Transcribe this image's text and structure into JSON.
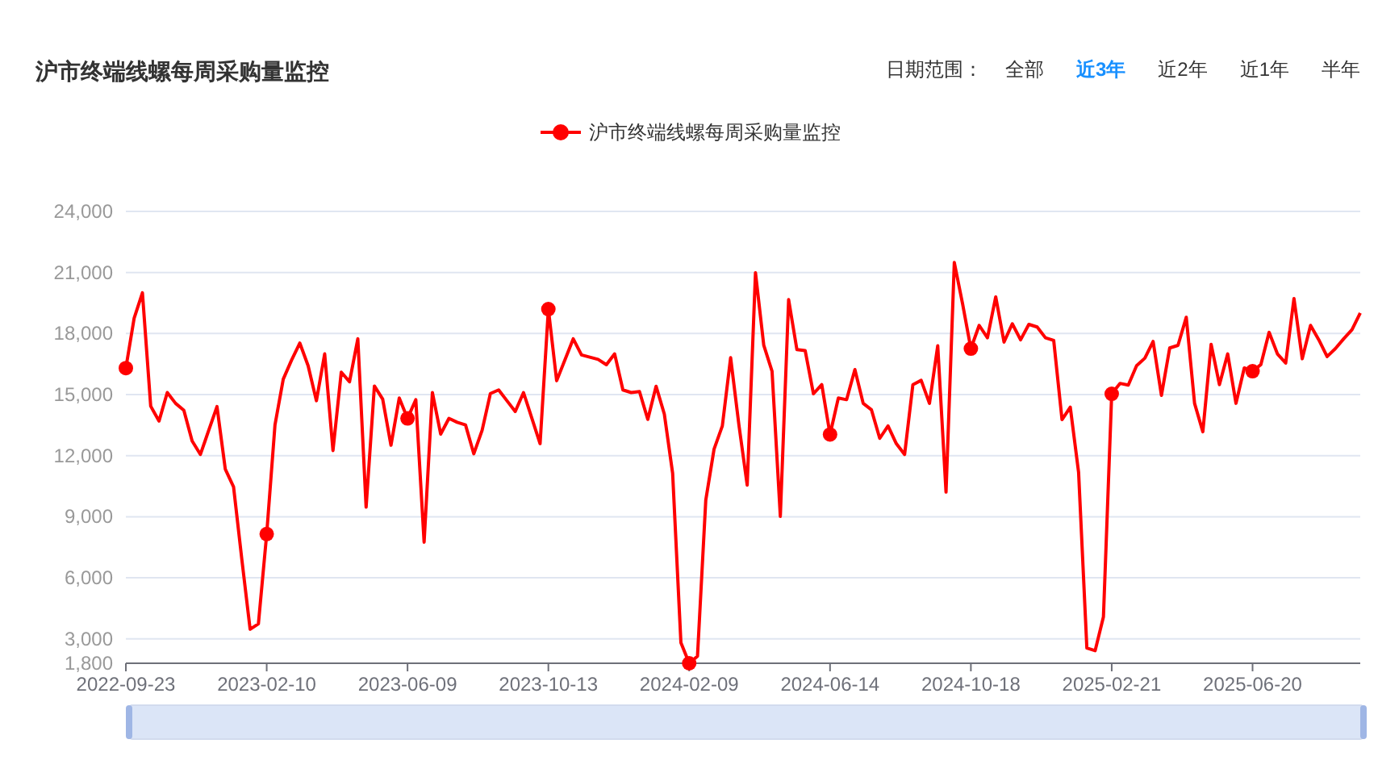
{
  "chart_data": {
    "type": "line",
    "title": "沪市终端线螺每周采购量监控",
    "annotations": [
      "日期范围：",
      "全部",
      "近3年",
      "近2年",
      "近1年",
      "半年"
    ],
    "categories": [
      "2022-09-23",
      null,
      null,
      null,
      null,
      null,
      null,
      null,
      null,
      null,
      null,
      null,
      null,
      null,
      null,
      null,
      null,
      "2023-02-10",
      null,
      null,
      null,
      null,
      null,
      null,
      null,
      null,
      null,
      null,
      null,
      null,
      null,
      null,
      null,
      null,
      "2023-06-09",
      null,
      null,
      null,
      null,
      null,
      null,
      null,
      null,
      null,
      null,
      null,
      null,
      null,
      null,
      null,
      null,
      "2023-10-13",
      null,
      null,
      null,
      null,
      null,
      null,
      null,
      null,
      null,
      null,
      null,
      null,
      null,
      null,
      null,
      null,
      "2024-02-09",
      null,
      null,
      null,
      null,
      null,
      null,
      null,
      null,
      null,
      null,
      null,
      null,
      null,
      null,
      null,
      null,
      "2024-06-14",
      null,
      null,
      null,
      null,
      null,
      null,
      null,
      null,
      null,
      null,
      null,
      null,
      null,
      null,
      null,
      null,
      "2024-10-18",
      null,
      null,
      null,
      null,
      null,
      null,
      null,
      null,
      null,
      null,
      null,
      null,
      null,
      null,
      null,
      null,
      "2025-02-21",
      null,
      null,
      null,
      null,
      null,
      null,
      null,
      null,
      null,
      null,
      null,
      null,
      null,
      null,
      null,
      null,
      "2025-06-20",
      null,
      null,
      null,
      null,
      null,
      null,
      null,
      null,
      null,
      null,
      null,
      null,
      null
    ],
    "series": [
      {
        "name": "沪市终端线螺每周采购量监控",
        "color": "#ff0000",
        "values": [
          16300,
          18750,
          20000,
          14430,
          13700,
          15100,
          14570,
          14230,
          12720,
          12060,
          13240,
          14410,
          11340,
          10470,
          6900,
          3470,
          3740,
          8150,
          13510,
          15760,
          16690,
          17530,
          16420,
          14700,
          17000,
          12250,
          16100,
          15630,
          17740,
          9470,
          15420,
          14780,
          12510,
          14830,
          13830,
          14750,
          7750,
          15100,
          13060,
          13830,
          13640,
          13510,
          12090,
          13240,
          15050,
          15230,
          14700,
          14170,
          15100,
          13850,
          12590,
          19200,
          15680,
          16710,
          17740,
          16950,
          16840,
          16730,
          16470,
          17000,
          15230,
          15100,
          15150,
          13780,
          15410,
          14040,
          11130,
          2810,
          1800,
          2150,
          9810,
          12320,
          13460,
          16810,
          13510,
          10550,
          20990,
          17420,
          16150,
          9020,
          19670,
          17210,
          17160,
          15040,
          15490,
          13040,
          14830,
          14750,
          16230,
          14570,
          14250,
          12850,
          13460,
          12590,
          12060,
          15490,
          15700,
          14570,
          17400,
          10210,
          21490,
          19460,
          17260,
          18400,
          17790,
          19800,
          17580,
          18480,
          17690,
          18450,
          18320,
          17790,
          17660,
          13770,
          14380,
          11190,
          2550,
          2420,
          4080,
          15040,
          15550,
          15470,
          16420,
          16790,
          17610,
          14960,
          17290,
          17420,
          18800,
          14570,
          13170,
          17470,
          15490,
          17000,
          14570,
          16310,
          16150,
          16470,
          18060,
          17000,
          16550,
          19720,
          16760,
          18400,
          17690,
          16870,
          17260,
          17740,
          18190,
          19010
        ]
      },
      {
        "type": "scatter",
        "color": "#ff0000",
        "marker": "circle",
        "values": [
          16300,
          null,
          null,
          null,
          null,
          null,
          null,
          null,
          null,
          null,
          null,
          null,
          null,
          null,
          null,
          null,
          null,
          8150,
          null,
          null,
          null,
          null,
          null,
          null,
          null,
          null,
          null,
          null,
          null,
          null,
          null,
          null,
          null,
          null,
          13830,
          null,
          null,
          null,
          null,
          null,
          null,
          null,
          null,
          null,
          null,
          null,
          null,
          null,
          null,
          null,
          null,
          19200,
          null,
          null,
          null,
          null,
          null,
          null,
          null,
          null,
          null,
          null,
          null,
          null,
          null,
          null,
          null,
          null,
          1800,
          null,
          null,
          null,
          null,
          null,
          null,
          null,
          null,
          null,
          null,
          null,
          null,
          null,
          null,
          null,
          null,
          13040,
          null,
          null,
          null,
          null,
          null,
          null,
          null,
          null,
          null,
          null,
          null,
          null,
          null,
          null,
          null,
          null,
          17260,
          null,
          null,
          null,
          null,
          null,
          null,
          null,
          null,
          null,
          null,
          null,
          null,
          null,
          null,
          null,
          null,
          15040,
          null,
          null,
          null,
          null,
          null,
          null,
          null,
          null,
          null,
          null,
          null,
          null,
          null,
          null,
          null,
          null,
          16150,
          null,
          null,
          null,
          null,
          null,
          null,
          null,
          null,
          null,
          null,
          null,
          null,
          null
        ]
      }
    ],
    "ylim": [
      1800,
      24000
    ],
    "yticks": [
      {
        "value": 1800,
        "label": "1,800"
      },
      {
        "value": 3000,
        "label": "3,000"
      },
      {
        "value": 6000,
        "label": "6,000"
      },
      {
        "value": 9000,
        "label": "9,000"
      },
      {
        "value": 12000,
        "label": "12,000"
      },
      {
        "value": 15000,
        "label": "15,000"
      },
      {
        "value": 18000,
        "label": "18,000"
      },
      {
        "value": 21000,
        "label": "21,000"
      },
      {
        "value": 24000,
        "label": "24,000"
      }
    ],
    "grid": "y",
    "legend": "top",
    "line_style": "solid"
  }
}
